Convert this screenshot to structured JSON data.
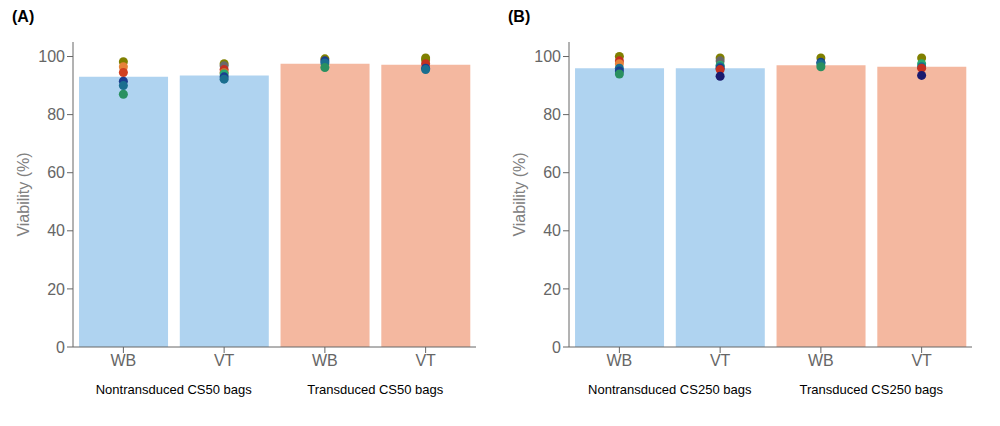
{
  "chart_data": [
    {
      "type": "bar",
      "title": "(A)",
      "ylabel": "Viability (%)",
      "categories": [
        "WB",
        "VT",
        "WB",
        "VT"
      ],
      "values": [
        93.0,
        93.5,
        97.5,
        97.2
      ],
      "colors": [
        "#afd3f0",
        "#afd3f0",
        "#f4b8a0",
        "#f4b8a0"
      ],
      "annotations": [
        "Nontransduced CS50 bags",
        "Transduced CS50 bags"
      ],
      "ylim": [
        0,
        105
      ],
      "yticks": [
        0,
        20,
        40,
        60,
        80,
        100
      ],
      "grid": false,
      "points": [
        {
          "y": [
            98.2,
            96.5,
            94.5,
            91.5,
            90.0,
            87.0
          ],
          "colors": [
            "#808000",
            "#e6823a",
            "#d04020",
            "#1a3d8f",
            "#1a6e8f",
            "#2a9060"
          ]
        },
        {
          "y": [
            97.5,
            96.8,
            95.5,
            94.5,
            94.0,
            93.0,
            92.2
          ],
          "colors": [
            "#808000",
            "#696969",
            "#c43020",
            "#c87030",
            "#2aaa70",
            "#1a3d8f",
            "#1a6e8f"
          ]
        },
        {
          "y": [
            99.2,
            98.5,
            97.8,
            96.2
          ],
          "colors": [
            "#808000",
            "#1a3d8f",
            "#1a6e8f",
            "#2a9060"
          ]
        },
        {
          "y": [
            99.5,
            98.8,
            97.5,
            96.0,
            95.5
          ],
          "colors": [
            "#808000",
            "#808000",
            "#c43020",
            "#1a3d8f",
            "#1a6e8f"
          ]
        }
      ]
    },
    {
      "type": "bar",
      "title": "(B)",
      "ylabel": "Viability (%)",
      "categories": [
        "WB",
        "VT",
        "WB",
        "VT"
      ],
      "values": [
        96.0,
        96.0,
        97.0,
        96.5
      ],
      "colors": [
        "#afd3f0",
        "#afd3f0",
        "#f4b8a0",
        "#f4b8a0"
      ],
      "annotations": [
        "Nontransduced CS250 bags",
        "Transduced CS250 bags"
      ],
      "ylim": [
        0,
        105
      ],
      "yticks": [
        0,
        20,
        40,
        60,
        80,
        100
      ],
      "grid": false,
      "points": [
        {
          "y": [
            100.0,
            98.5,
            97.5,
            96.0,
            95.0,
            94.0
          ],
          "colors": [
            "#808000",
            "#c43020",
            "#e6823a",
            "#1a6e8f",
            "#1a3d8f",
            "#2a9060"
          ]
        },
        {
          "y": [
            99.5,
            98.5,
            97.0,
            96.5,
            96.0,
            95.5,
            93.2
          ],
          "colors": [
            "#808000",
            "#696969",
            "#2aaa70",
            "#1a6e8f",
            "#1a3d8f",
            "#c43020",
            "#1a1a6f"
          ]
        },
        {
          "y": [
            99.5,
            98.0,
            97.5,
            96.5
          ],
          "colors": [
            "#808000",
            "#1a3d8f",
            "#1a6e8f",
            "#2a9060"
          ]
        },
        {
          "y": [
            99.5,
            97.5,
            96.5,
            96.0,
            93.5
          ],
          "colors": [
            "#808000",
            "#2aaa70",
            "#1a6e8f",
            "#c43020",
            "#1a1a6f"
          ]
        }
      ]
    }
  ]
}
